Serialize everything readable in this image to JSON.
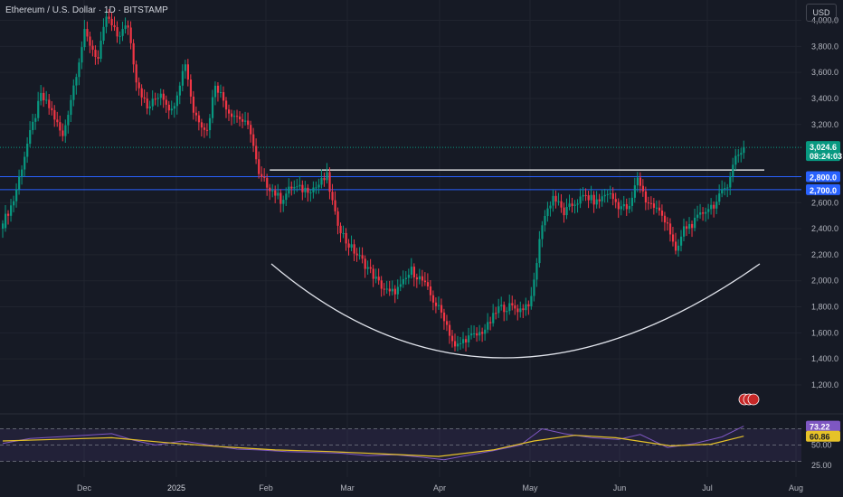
{
  "header": {
    "symbol_title": "Ethereum / U.S. Dollar · 1D · BITSTAMP",
    "currency_button": "USD"
  },
  "price_badge": {
    "last_price": "3,024.6",
    "countdown": "08:24:03"
  },
  "level_badges": [
    "2,800.0",
    "2,700.0"
  ],
  "rsi_badges": {
    "rsi": "73.22",
    "ma": "60.86"
  },
  "colors": {
    "background": "#161a25",
    "grid": "#20242f",
    "up_candle": "#089981",
    "down_candle": "#f23645",
    "level_line": "#2962ff",
    "rsi_line": "#7e57c2",
    "rsi_ma": "#e6c229",
    "price_badge": "#089981",
    "text": "#b2b5be"
  },
  "chart_data": [
    {
      "type": "candlestick",
      "price_axis": {
        "ticks": [
          "4,000.0",
          "3,800.0",
          "3,600.0",
          "3,400.0",
          "3,200.0",
          "2,600.0",
          "2,400.0",
          "2,200.0",
          "2,000.0",
          "1,800.0",
          "1,600.0",
          "1,400.0",
          "1,200.0"
        ],
        "ylim": [
          1050,
          4150
        ]
      },
      "time_axis": {
        "ticks": [
          "Dec",
          "2025",
          "Feb",
          "Mar",
          "Apr",
          "May",
          "Jun",
          "Jul",
          "Aug"
        ]
      },
      "horizontal_levels": [
        {
          "price": 2800,
          "color": "#2962ff"
        },
        {
          "price": 2700,
          "color": "#2962ff"
        },
        {
          "price": 2830,
          "color": "#ffffff"
        },
        {
          "price": 3024.6,
          "color": "#089981",
          "style": "dotted"
        }
      ],
      "annotations": [
        "cup-shaped arc drawn under price from Feb to mid-Jul"
      ],
      "price_path": [
        [
          0,
          2440
        ],
        [
          4,
          2620
        ],
        [
          9,
          3050
        ],
        [
          14,
          3420
        ],
        [
          18,
          3300
        ],
        [
          22,
          3100
        ],
        [
          26,
          3500
        ],
        [
          30,
          3900
        ],
        [
          35,
          3700
        ],
        [
          38,
          4030
        ],
        [
          42,
          3880
        ],
        [
          46,
          3960
        ],
        [
          49,
          3550
        ],
        [
          53,
          3320
        ],
        [
          58,
          3450
        ],
        [
          62,
          3300
        ],
        [
          67,
          3680
        ],
        [
          70,
          3300
        ],
        [
          75,
          3150
        ],
        [
          78,
          3520
        ],
        [
          83,
          3300
        ],
        [
          87,
          3250
        ],
        [
          91,
          3150
        ],
        [
          94,
          2800
        ],
        [
          98,
          2720
        ],
        [
          102,
          2620
        ],
        [
          106,
          2720
        ],
        [
          110,
          2700
        ],
        [
          115,
          2720
        ],
        [
          119,
          2800
        ],
        [
          122,
          2500
        ],
        [
          126,
          2300
        ],
        [
          130,
          2200
        ],
        [
          134,
          2100
        ],
        [
          138,
          1980
        ],
        [
          142,
          1900
        ],
        [
          146,
          1950
        ],
        [
          150,
          2080
        ],
        [
          154,
          2000
        ],
        [
          158,
          1850
        ],
        [
          162,
          1720
        ],
        [
          166,
          1480
        ],
        [
          170,
          1560
        ],
        [
          174,
          1580
        ],
        [
          178,
          1650
        ],
        [
          182,
          1790
        ],
        [
          186,
          1800
        ],
        [
          190,
          1780
        ],
        [
          194,
          1850
        ],
        [
          198,
          2450
        ],
        [
          202,
          2650
        ],
        [
          206,
          2520
        ],
        [
          210,
          2600
        ],
        [
          214,
          2650
        ],
        [
          218,
          2600
        ],
        [
          222,
          2680
        ],
        [
          226,
          2580
        ],
        [
          230,
          2550
        ],
        [
          233,
          2800
        ],
        [
          236,
          2620
        ],
        [
          240,
          2550
        ],
        [
          244,
          2450
        ],
        [
          247,
          2200
        ],
        [
          250,
          2400
        ],
        [
          254,
          2450
        ],
        [
          258,
          2550
        ],
        [
          262,
          2600
        ],
        [
          266,
          2750
        ],
        [
          269,
          2950
        ],
        [
          272,
          3024.6
        ]
      ]
    },
    {
      "type": "line",
      "name": "RSI",
      "ticks": [
        "50.00",
        "25.00"
      ],
      "ylim": [
        20,
        85
      ],
      "levels": [
        70,
        50,
        30
      ],
      "rsi": [
        [
          0,
          52
        ],
        [
          10,
          58
        ],
        [
          20,
          60
        ],
        [
          30,
          62
        ],
        [
          40,
          64
        ],
        [
          48,
          56
        ],
        [
          56,
          50
        ],
        [
          66,
          55
        ],
        [
          76,
          50
        ],
        [
          86,
          45
        ],
        [
          94,
          44
        ],
        [
          104,
          42
        ],
        [
          114,
          41
        ],
        [
          124,
          40
        ],
        [
          134,
          37
        ],
        [
          144,
          38
        ],
        [
          154,
          35
        ],
        [
          162,
          32
        ],
        [
          170,
          37
        ],
        [
          180,
          43
        ],
        [
          190,
          50
        ],
        [
          198,
          70
        ],
        [
          206,
          64
        ],
        [
          216,
          59
        ],
        [
          226,
          57
        ],
        [
          234,
          63
        ],
        [
          244,
          47
        ],
        [
          254,
          52
        ],
        [
          264,
          60
        ],
        [
          272,
          73.22
        ]
      ],
      "ma": [
        [
          0,
          55
        ],
        [
          20,
          57
        ],
        [
          40,
          59
        ],
        [
          60,
          53
        ],
        [
          80,
          48
        ],
        [
          100,
          44
        ],
        [
          120,
          42
        ],
        [
          140,
          39
        ],
        [
          160,
          36
        ],
        [
          180,
          44
        ],
        [
          195,
          55
        ],
        [
          210,
          62
        ],
        [
          225,
          59
        ],
        [
          245,
          49
        ],
        [
          260,
          51
        ],
        [
          272,
          60.86
        ]
      ]
    }
  ]
}
